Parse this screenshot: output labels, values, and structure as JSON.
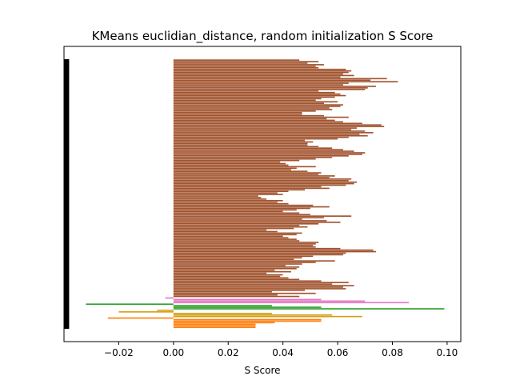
{
  "chart_data": {
    "type": "bar",
    "orientation": "horizontal",
    "title": "KMeans euclidian_distance, random initialization S Score",
    "xlabel": "S Score",
    "ylabel": "",
    "xlim": [
      -0.04,
      0.105
    ],
    "xticks": [
      "−0.02",
      "0.00",
      "0.02",
      "0.04",
      "0.06",
      "0.08",
      "0.10"
    ],
    "xtick_values": [
      -0.02,
      0.0,
      0.02,
      0.04,
      0.06,
      0.08,
      0.1
    ],
    "yticks_visible": false,
    "grid": false,
    "legend": "none",
    "colors": {
      "cluster_brown": "#a0522d",
      "cluster_pink": "#e377c2",
      "cluster_green": "#2ca02c",
      "cluster_gold": "#d4a017",
      "cluster_orange": "#ff7f0e",
      "mean_line": "#000000"
    },
    "mean_line_x": -0.039,
    "series": [
      {
        "color": "orange",
        "values": [
          0.03,
          0.03,
          0.03,
          0.037,
          0.054,
          0.054,
          -0.024
        ]
      },
      {
        "color": "gold",
        "values": [
          0.069,
          0.058,
          0.036,
          -0.02,
          -0.006
        ]
      },
      {
        "color": "green",
        "values": [
          0.099,
          0.054,
          0.036,
          -0.032
        ]
      },
      {
        "color": "pink",
        "values": [
          0.086,
          0.07,
          0.054,
          -0.003
        ]
      },
      {
        "color": "brown",
        "values": [
          0.046,
          0.038,
          0.052,
          0.036,
          0.048,
          0.063,
          0.062,
          0.066,
          0.058,
          0.064,
          0.054,
          0.046,
          0.042,
          0.039,
          0.04,
          0.034,
          0.043,
          0.037,
          0.045,
          0.046,
          0.041,
          0.047,
          0.052,
          0.059,
          0.044,
          0.047,
          0.051,
          0.062,
          0.063,
          0.074,
          0.073,
          0.061,
          0.052,
          0.051,
          0.052,
          0.053,
          0.046,
          0.045,
          0.042,
          0.04,
          0.045,
          0.047,
          0.038,
          0.034,
          0.044,
          0.049,
          0.046,
          0.053,
          0.061,
          0.056,
          0.047,
          0.055,
          0.065,
          0.05,
          0.046,
          0.04,
          0.045,
          0.05,
          0.057,
          0.051,
          0.042,
          0.038,
          0.04,
          0.034,
          0.032,
          0.031,
          0.04,
          0.038,
          0.042,
          0.048,
          0.057,
          0.054,
          0.063,
          0.066,
          0.067,
          0.064,
          0.065,
          0.057,
          0.059,
          0.053,
          0.054,
          0.049,
          0.043,
          0.045,
          0.052,
          0.042,
          0.041,
          0.039,
          0.046,
          0.052,
          0.058,
          0.064,
          0.069,
          0.07,
          0.066,
          0.062,
          0.058,
          0.053,
          0.049,
          0.049,
          0.051,
          0.048,
          0.06,
          0.064,
          0.071,
          0.068,
          0.073,
          0.07,
          0.065,
          0.067,
          0.077,
          0.076,
          0.069,
          0.062,
          0.059,
          0.056,
          0.064,
          0.055,
          0.047,
          0.047,
          0.052,
          0.058,
          0.057,
          0.061,
          0.062,
          0.055,
          0.06,
          0.052,
          0.054,
          0.059,
          0.063,
          0.061,
          0.059,
          0.053,
          0.07,
          0.071,
          0.074,
          0.062,
          0.064,
          0.082,
          0.072,
          0.078,
          0.061,
          0.066,
          0.062,
          0.064,
          0.065,
          0.063,
          0.053,
          0.052,
          0.055,
          0.049,
          0.053,
          0.046
        ]
      }
    ]
  }
}
